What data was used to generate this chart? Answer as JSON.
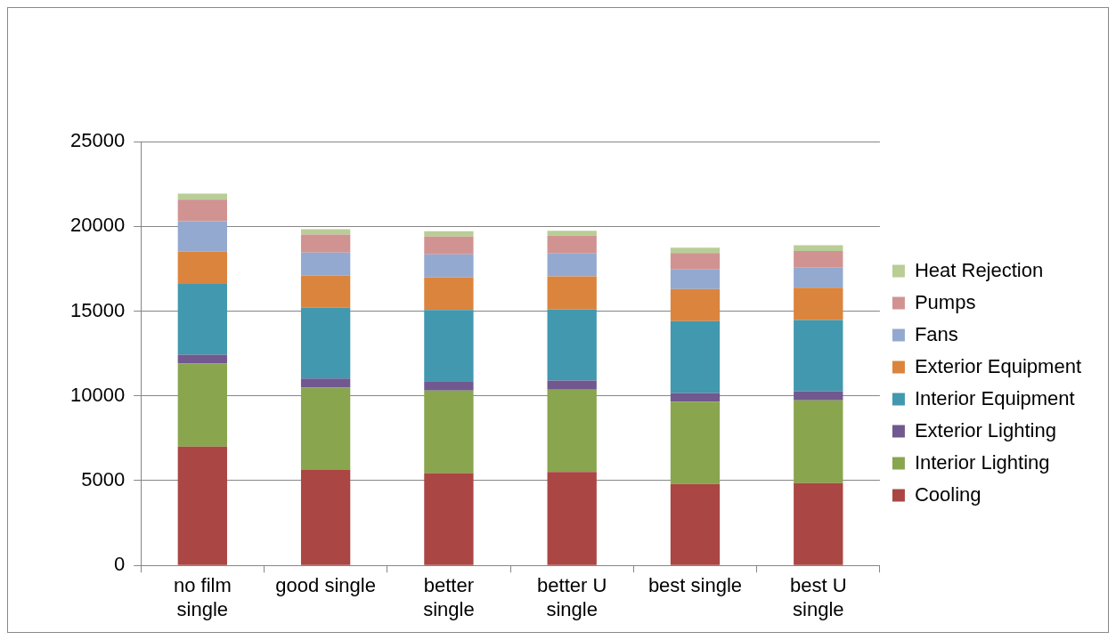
{
  "chart_data": {
    "type": "bar",
    "stacked": true,
    "categories": [
      "no film single",
      "good single",
      "better single",
      "better U single",
      "best single",
      "best U single"
    ],
    "series": [
      {
        "name": "Cooling",
        "color": "#aa4643",
        "values": [
          7000,
          5630,
          5450,
          5510,
          4800,
          4860
        ]
      },
      {
        "name": "Interior Lighting",
        "color": "#89a54e",
        "values": [
          4900,
          4860,
          4860,
          4850,
          4860,
          4880
        ]
      },
      {
        "name": "Exterior Lighting",
        "color": "#71588f",
        "values": [
          530,
          530,
          550,
          550,
          510,
          530
        ]
      },
      {
        "name": "Interior Equipment",
        "color": "#4198af",
        "values": [
          4170,
          4170,
          4200,
          4200,
          4240,
          4200
        ]
      },
      {
        "name": "Exterior Equipment",
        "color": "#db843d",
        "values": [
          1900,
          1900,
          1930,
          1930,
          1890,
          1910
        ]
      },
      {
        "name": "Fans",
        "color": "#93a9cf",
        "values": [
          1800,
          1360,
          1360,
          1360,
          1150,
          1180
        ]
      },
      {
        "name": "Pumps",
        "color": "#d19392",
        "values": [
          1280,
          1070,
          1050,
          1050,
          980,
          980
        ]
      },
      {
        "name": "Heat Rejection",
        "color": "#b9cd96",
        "values": [
          350,
          310,
          310,
          290,
          310,
          350
        ]
      }
    ],
    "ylim": [
      0,
      25000
    ],
    "yticks": [
      0,
      5000,
      10000,
      15000,
      20000,
      25000
    ],
    "grid": "y",
    "legend": "right"
  }
}
